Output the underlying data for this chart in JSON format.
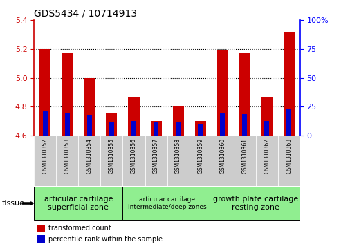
{
  "title": "GDS5434 / 10714913",
  "samples": [
    "GSM1310352",
    "GSM1310353",
    "GSM1310354",
    "GSM1310355",
    "GSM1310356",
    "GSM1310357",
    "GSM1310358",
    "GSM1310359",
    "GSM1310360",
    "GSM1310361",
    "GSM1310362",
    "GSM1310363"
  ],
  "red_values": [
    5.2,
    5.17,
    5.0,
    4.76,
    4.87,
    4.7,
    4.8,
    4.7,
    5.19,
    5.17,
    4.87,
    5.32
  ],
  "blue_values": [
    4.77,
    4.76,
    4.74,
    4.69,
    4.7,
    4.69,
    4.69,
    4.68,
    4.76,
    4.75,
    4.7,
    4.78
  ],
  "ylim_left": [
    4.6,
    5.4
  ],
  "ylim_right": [
    0,
    100
  ],
  "yticks_left": [
    4.6,
    4.8,
    5.0,
    5.2,
    5.4
  ],
  "yticks_right": [
    0,
    25,
    50,
    75,
    100
  ],
  "baseline": 4.6,
  "groups": [
    {
      "label": "articular cartilage\nsuperficial zone",
      "start": 0,
      "end": 4,
      "fontsize": 8
    },
    {
      "label": "articular cartilage\nintermediate/deep zones",
      "start": 4,
      "end": 8,
      "fontsize": 6.5
    },
    {
      "label": "growth plate cartilage\nresting zone",
      "start": 8,
      "end": 12,
      "fontsize": 8
    }
  ],
  "group_color": "#90EE90",
  "bar_width": 0.5,
  "red_color": "#CC0000",
  "blue_color": "#0000CC",
  "blue_bar_width": 0.22,
  "tissue_label": "tissue",
  "legend_red": "transformed count",
  "legend_blue": "percentile rank within the sample",
  "bg_color": "#CCCCCC"
}
